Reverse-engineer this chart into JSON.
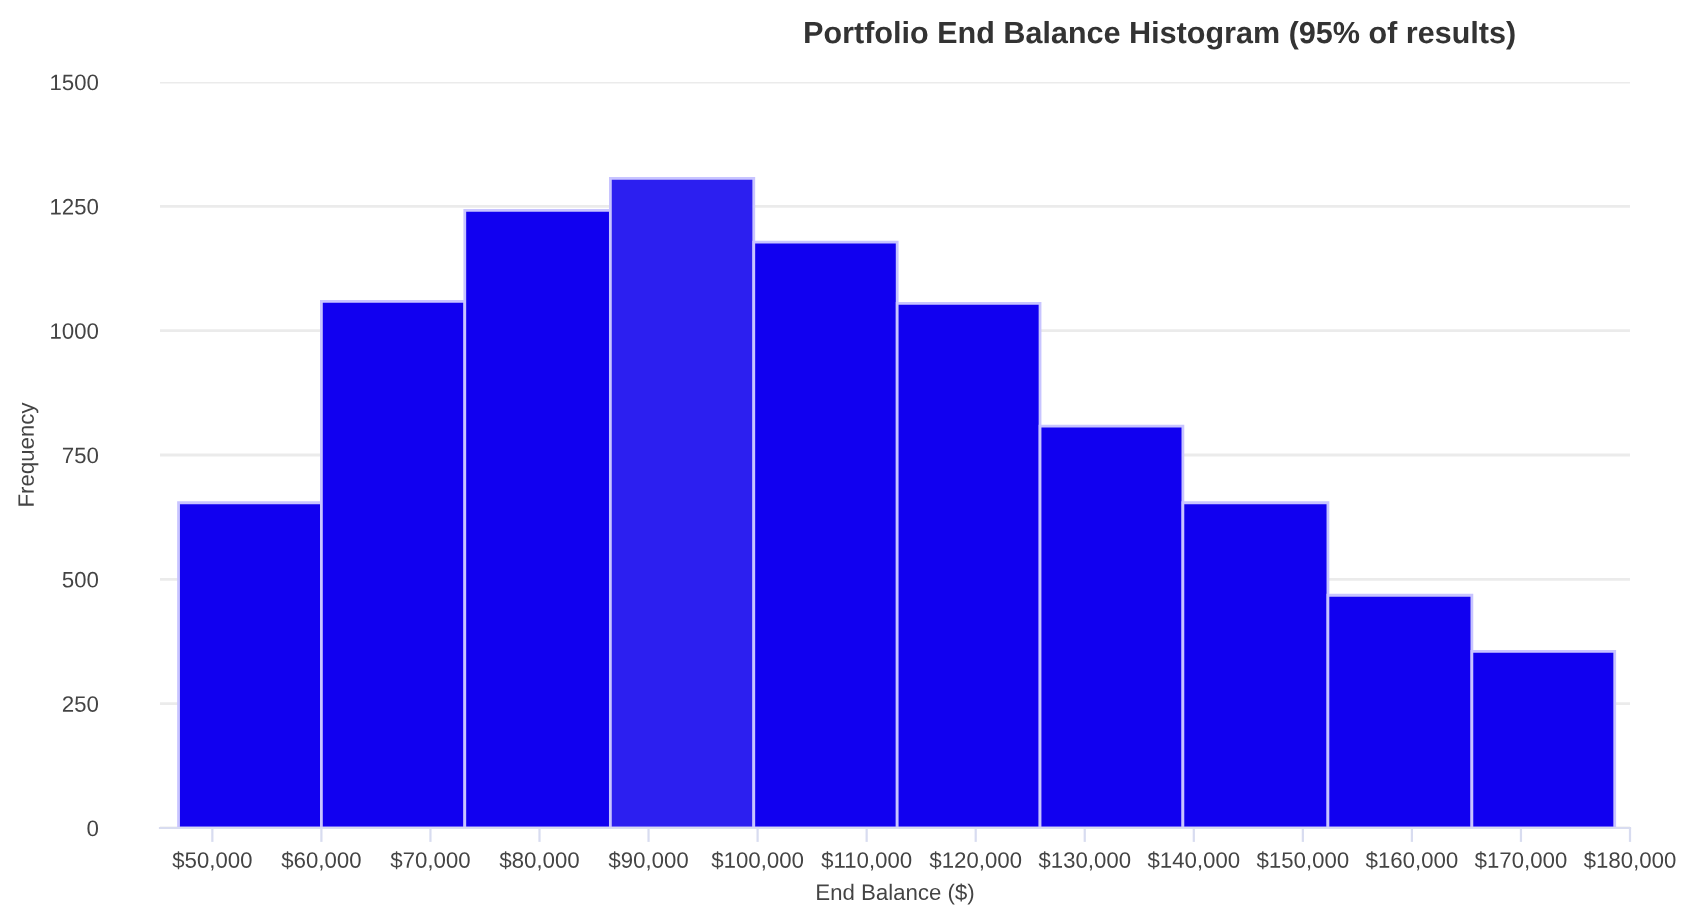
{
  "chart_data": {
    "type": "histogram",
    "title": "Portfolio End Balance Histogram (95% of results)",
    "xlabel": "End Balance ($)",
    "ylabel": "Frequency",
    "bins": [
      46900,
      60000,
      73150,
      86500,
      99650,
      112800,
      125900,
      139000,
      152300,
      165500,
      178600
    ],
    "values": [
      654,
      1059,
      1242,
      1306,
      1178,
      1055,
      808,
      654,
      468,
      355
    ],
    "colors": [
      "#1100f0",
      "#1100f0",
      "#1100f0",
      "#2c1ff0",
      "#1100f0",
      "#1100f0",
      "#1100f0",
      "#1100f0",
      "#1100f0",
      "#1100f0"
    ],
    "xlim": [
      45200,
      180000
    ],
    "xticks": [
      {
        "value": 50000,
        "label": "$50,000"
      },
      {
        "value": 60000,
        "label": "$60,000"
      },
      {
        "value": 70000,
        "label": "$70,000"
      },
      {
        "value": 80000,
        "label": "$80,000"
      },
      {
        "value": 90000,
        "label": "$90,000"
      },
      {
        "value": 100000,
        "label": "$100,000"
      },
      {
        "value": 110000,
        "label": "$110,000"
      },
      {
        "value": 120000,
        "label": "$120,000"
      },
      {
        "value": 130000,
        "label": "$130,000"
      },
      {
        "value": 140000,
        "label": "$140,000"
      },
      {
        "value": 150000,
        "label": "$150,000"
      },
      {
        "value": 160000,
        "label": "$160,000"
      },
      {
        "value": 170000,
        "label": "$170,000"
      },
      {
        "value": 180000,
        "label": "$180,000"
      }
    ],
    "ylim": [
      0,
      1500
    ],
    "yticks": [
      0,
      250,
      500,
      750,
      1000,
      1250,
      1500
    ],
    "grid": "y"
  }
}
